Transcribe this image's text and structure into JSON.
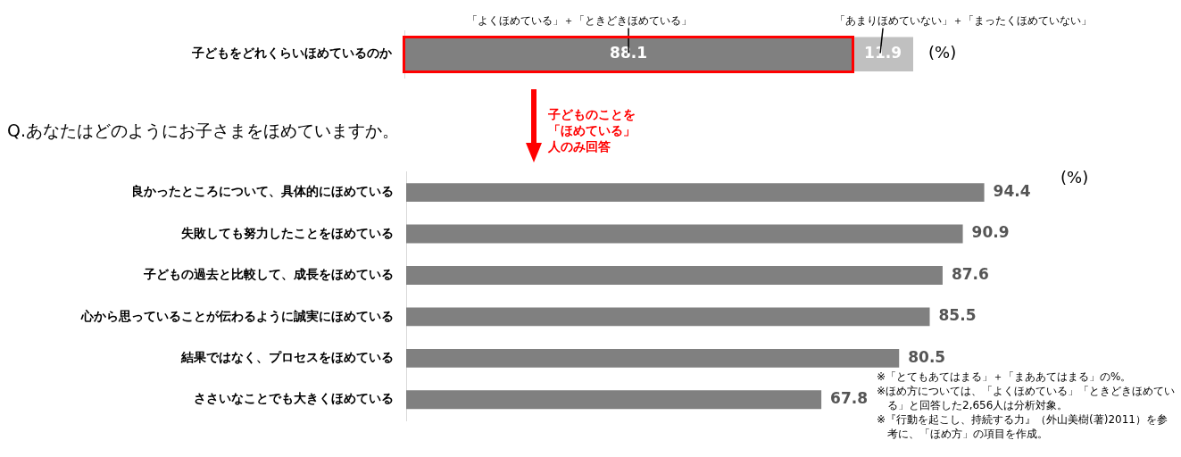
{
  "chart_data": [
    {
      "type": "bar",
      "orientation": "horizontal",
      "stacked": true,
      "categories": [
        "子どもをどれくらいほめているのか"
      ],
      "series": [
        {
          "name": "「よくほめている」＋「ときどきほめている」",
          "color": "#808080",
          "values": [
            88.1
          ]
        },
        {
          "name": "「あまりほめていない」＋「まったくほめていない」",
          "color": "#c0c0c0",
          "values": [
            11.9
          ]
        }
      ],
      "tick_labels": "y",
      "data_labels": true,
      "grid": false,
      "legend": false,
      "annotations": [
        "(%)"
      ]
    },
    {
      "type": "bar",
      "orientation": "horizontal",
      "categories": [
        "良かったところについて、具体的にほめている",
        "失敗しても努力したことをほめている",
        "子どもの過去と比較して、成長をほめている",
        "心から思っていることが伝わるように誠実にほめている",
        "結果ではなく、プロセスをほめている",
        "ささいなことでも大きくほめている"
      ],
      "values": [
        94.4,
        90.9,
        87.6,
        85.5,
        80.5,
        67.8
      ],
      "color": "#808080",
      "tick_labels": "y",
      "data_labels": true,
      "grid": false,
      "legend": false,
      "annotations": [
        "Q.あなたはどのようにお子さまをほめていますか。",
        "(%)",
        "子どものことを「ほめている」人のみ回答",
        "※「とてもあてはまる」＋「まああてはまる」の%。",
        "※ほめ方については、「よくほめている」「ときどきほめている」と回答した2,656人は分析対象。",
        "※『行動を起こし、持続する力』（外山美樹(著)2011）を参考に、「ほめ方」の項目を作成。"
      ]
    }
  ]
}
